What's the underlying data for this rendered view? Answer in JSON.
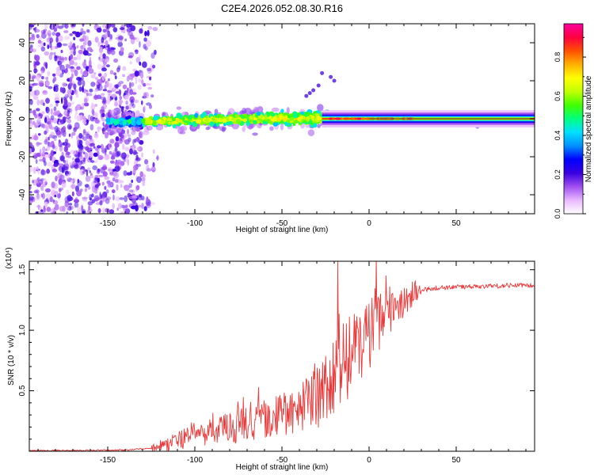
{
  "figure": {
    "title": "C2E4.2026.052.08.30.R16"
  },
  "chart_data": [
    {
      "type": "heatmap",
      "name": "spectrogram",
      "xlabel": "Height of straight line (km)",
      "ylabel": "Frequency (Hz)",
      "xlim": [
        -195,
        95
      ],
      "ylim": [
        -50,
        50
      ],
      "xticks": [
        -150,
        -100,
        -50,
        0,
        50
      ],
      "yticks": [
        -40,
        -20,
        0,
        20,
        40
      ],
      "colorbar": {
        "label": "Normalized spectral amplitude",
        "range": [
          0.0,
          0.97
        ],
        "ticks": [
          0.0,
          0.2,
          0.4,
          0.6,
          0.8
        ],
        "tick_labels": [
          "0.0",
          "0.2",
          "0.4",
          "0.6",
          "0.8"
        ],
        "colors": [
          "#ffffff",
          "#e8b8ff",
          "#a050f0",
          "#3a00e0",
          "#0000ff",
          "#0090ff",
          "#00e0ff",
          "#00ff80",
          "#40ff00",
          "#c0ff00",
          "#ffff00",
          "#ffb000",
          "#ff5000",
          "#ff0040",
          "#ff00a0"
        ]
      },
      "regions": [
        {
          "description": "noise",
          "x_range": [
            -195,
            -125
          ],
          "freq_range": [
            -50,
            50
          ],
          "amplitude": 0.2
        },
        {
          "description": "signal band",
          "x_range": [
            -150,
            -25
          ],
          "freq_center": 0,
          "freq_halfwidth": 6,
          "amplitude": 0.5
        },
        {
          "description": "narrow carrier",
          "x_range": [
            -25,
            95
          ],
          "freq_center": 0,
          "freq_halfwidth": 2,
          "amplitude": 0.9
        }
      ]
    },
    {
      "type": "line",
      "name": "snr",
      "xlabel": "Height of straight line (km)",
      "ylabel": "SNR (10 * v/v)",
      "exponent_label": "(x10⁴)",
      "xlim": [
        -195,
        95
      ],
      "ylim": [
        0,
        1.57
      ],
      "xticks": [
        -150,
        -100,
        -50,
        0,
        50
      ],
      "yticks": [
        0.5,
        1.0,
        1.5
      ],
      "ytick_labels": [
        "0.5",
        "1.0",
        "1.5"
      ],
      "series": [
        {
          "name": "SNR",
          "color": "#e83a3a",
          "x": [
            -195,
            -170,
            -140,
            -120,
            -110,
            -100,
            -90,
            -80,
            -70,
            -60,
            -50,
            -40,
            -30,
            -25,
            -20,
            -15,
            -10,
            -5,
            0,
            5,
            10,
            20,
            30,
            40,
            60,
            80,
            95
          ],
          "y": [
            0.005,
            0.006,
            0.01,
            0.03,
            0.09,
            0.13,
            0.16,
            0.19,
            0.22,
            0.26,
            0.3,
            0.35,
            0.42,
            0.5,
            0.62,
            0.72,
            0.82,
            0.92,
            1.0,
            1.08,
            1.16,
            1.24,
            1.33,
            1.35,
            1.36,
            1.37,
            1.37
          ]
        }
      ]
    }
  ]
}
